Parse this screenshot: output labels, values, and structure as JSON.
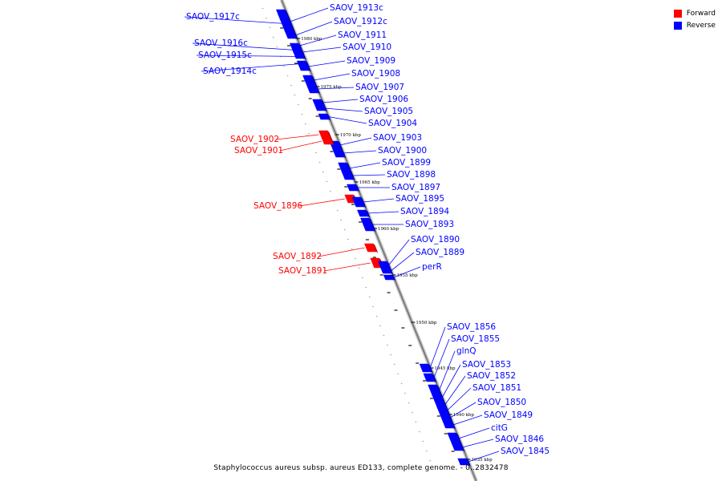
{
  "caption": "Staphylococcus aureus subsp. aureus ED133, complete genome. - 0..2832478",
  "legend": [
    {
      "label": "Forward",
      "color": "#ff0000"
    },
    {
      "label": "Reverse",
      "color": "#0000ff"
    }
  ],
  "colors": {
    "forward": "#ff0000",
    "reverse": "#0000ff",
    "backbone": "#888888"
  },
  "kbp_ticks": [
    "1980 kbp",
    "1975 kbp",
    "1970 kbp",
    "1965 kbp",
    "1960 kbp",
    "1955 kbp",
    "1950 kbp",
    "1945 kbp",
    "1940 kbp",
    "1935 kbp"
  ],
  "genes": [
    {
      "label": "SAOV_1917c",
      "strand": "reverse"
    },
    {
      "label": "SAOV_1916c",
      "strand": "reverse"
    },
    {
      "label": "SAOV_1915c",
      "strand": "reverse"
    },
    {
      "label": "SAOV_1914c",
      "strand": "reverse"
    },
    {
      "label": "SAOV_1913c",
      "strand": "reverse"
    },
    {
      "label": "SAOV_1912c",
      "strand": "reverse"
    },
    {
      "label": "SAOV_1911",
      "strand": "reverse"
    },
    {
      "label": "SAOV_1910",
      "strand": "reverse"
    },
    {
      "label": "SAOV_1909",
      "strand": "reverse"
    },
    {
      "label": "SAOV_1908",
      "strand": "reverse"
    },
    {
      "label": "SAOV_1907",
      "strand": "reverse"
    },
    {
      "label": "SAOV_1906",
      "strand": "reverse"
    },
    {
      "label": "SAOV_1905",
      "strand": "reverse"
    },
    {
      "label": "SAOV_1904",
      "strand": "reverse"
    },
    {
      "label": "SAOV_1903",
      "strand": "reverse"
    },
    {
      "label": "SAOV_1902",
      "strand": "forward"
    },
    {
      "label": "SAOV_1901",
      "strand": "forward"
    },
    {
      "label": "SAOV_1900",
      "strand": "reverse"
    },
    {
      "label": "SAOV_1899",
      "strand": "reverse"
    },
    {
      "label": "SAOV_1898",
      "strand": "reverse"
    },
    {
      "label": "SAOV_1897",
      "strand": "reverse"
    },
    {
      "label": "SAOV_1896",
      "strand": "forward"
    },
    {
      "label": "SAOV_1895",
      "strand": "reverse"
    },
    {
      "label": "SAOV_1894",
      "strand": "reverse"
    },
    {
      "label": "SAOV_1893",
      "strand": "reverse"
    },
    {
      "label": "SAOV_1892",
      "strand": "forward"
    },
    {
      "label": "SAOV_1891",
      "strand": "forward"
    },
    {
      "label": "SAOV_1890",
      "strand": "reverse"
    },
    {
      "label": "SAOV_1889",
      "strand": "reverse"
    },
    {
      "label": "perR",
      "strand": "reverse"
    },
    {
      "label": "SAOV_1856",
      "strand": "reverse"
    },
    {
      "label": "SAOV_1855",
      "strand": "reverse"
    },
    {
      "label": "glnQ",
      "strand": "reverse"
    },
    {
      "label": "SAOV_1853",
      "strand": "reverse"
    },
    {
      "label": "SAOV_1852",
      "strand": "reverse"
    },
    {
      "label": "SAOV_1851",
      "strand": "reverse"
    },
    {
      "label": "SAOV_1850",
      "strand": "reverse"
    },
    {
      "label": "SAOV_1849",
      "strand": "reverse"
    },
    {
      "label": "citG",
      "strand": "reverse"
    },
    {
      "label": "SAOV_1846",
      "strand": "reverse"
    },
    {
      "label": "SAOV_1845",
      "strand": "reverse"
    }
  ]
}
